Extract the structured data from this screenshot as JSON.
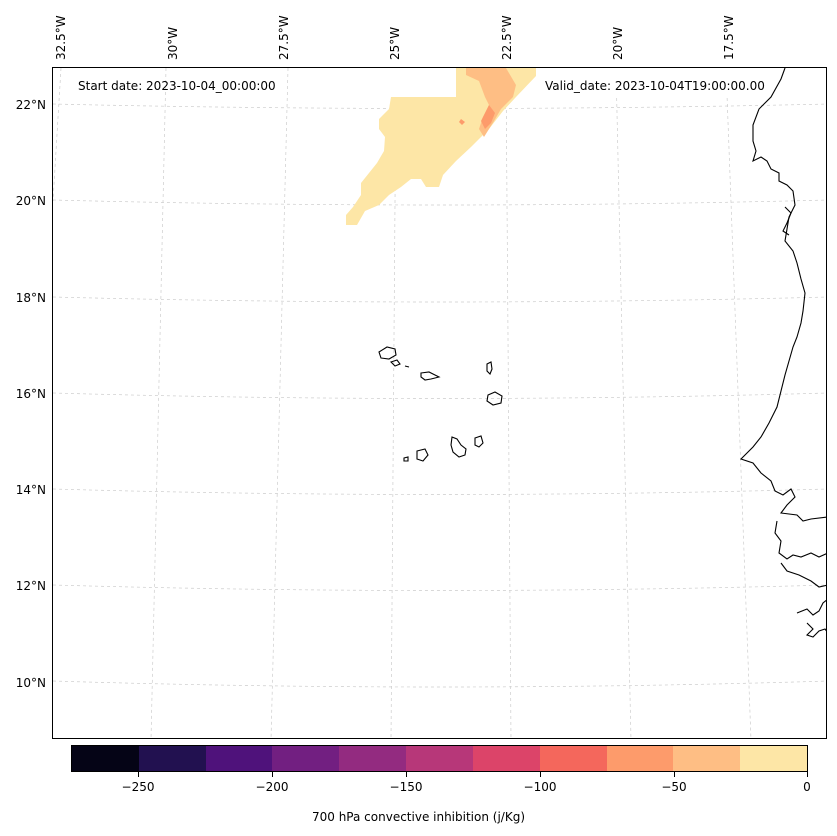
{
  "header": {
    "start_date": "Start date: 2023-10-04_00:00:00",
    "valid_date": "Valid_date: 2023-10-04T19:00:00.00"
  },
  "map": {
    "lon_labels": [
      "32.5°W",
      "30°W",
      "27.5°W",
      "25°W",
      "22.5°W",
      "20°W",
      "17.5°W"
    ],
    "lat_labels": [
      "22°N",
      "20°N",
      "18°N",
      "16°N",
      "14°N",
      "12°N",
      "10°N"
    ],
    "gridlines": "dashed",
    "coastline_color": "#000000"
  },
  "colorbar": {
    "label": "700 hPa convective inhibition (j/Kg)",
    "ticks": [
      "−250",
      "−200",
      "−150",
      "−100",
      "−50",
      "0"
    ],
    "colors": [
      "#050416",
      "#221150",
      "#4f127b",
      "#721f81",
      "#932b80",
      "#b73779",
      "#dc4469",
      "#f4675c",
      "#fd9b6b",
      "#febe84",
      "#fde6a6"
    ]
  },
  "chart_data": {
    "type": "heatmap",
    "variable": "700 hPa convective inhibition (j/Kg)",
    "levels": [
      -275,
      -250,
      -225,
      -200,
      -175,
      -150,
      -125,
      -100,
      -75,
      -50,
      -25,
      0
    ],
    "regions": [
      {
        "lat_range": [
          19.6,
          22.8
        ],
        "lon_range": [
          -26.5,
          -22.0
        ],
        "value_range": [
          -25,
          0
        ]
      },
      {
        "lat_range": [
          21.2,
          22.8
        ],
        "lon_range": [
          -23.5,
          -22.5
        ],
        "value_range": [
          -75,
          -25
        ]
      }
    ]
  }
}
